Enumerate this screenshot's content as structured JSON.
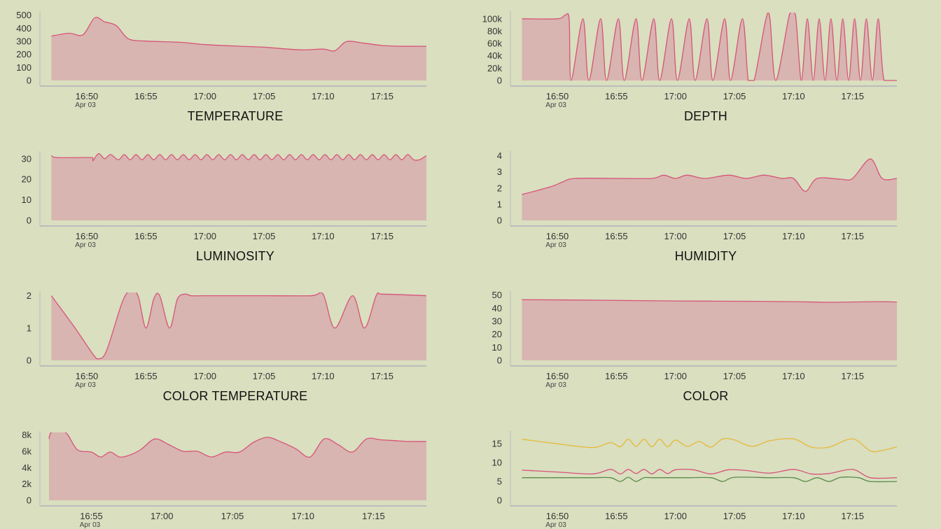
{
  "colors": {
    "background": "#d9dfbf",
    "line": "#d8537a",
    "fill": "#d8b5b0",
    "axis": "#bcbcbc",
    "series_yellow": "#e8b838",
    "series_pink": "#d8537a",
    "series_green": "#5a8a4a"
  },
  "chart_data": [
    {
      "id": "temperature",
      "type": "area",
      "title": "TEMPERATURE",
      "date_label": "Apr 03",
      "xlim": [
        "16:46:30",
        "17:18:45"
      ],
      "ylim": [
        0,
        520
      ],
      "yticks": [
        0,
        100,
        200,
        300,
        400,
        500
      ],
      "ytick_labels": [
        "0",
        "100",
        "200",
        "300",
        "400",
        "500"
      ],
      "xticks": [
        "16:50",
        "16:55",
        "17:00",
        "17:05",
        "17:10",
        "17:15"
      ],
      "series": [
        {
          "x": [
            "16:47:00",
            "16:48:30",
            "16:49:40",
            "16:50:40",
            "16:51:30",
            "16:52:30",
            "16:53:30",
            "16:55:00",
            "16:58:00",
            "17:00:00",
            "17:03:00",
            "17:05:00",
            "17:08:00",
            "17:10:00",
            "17:11:00",
            "17:12:00",
            "17:13:30",
            "17:15:00",
            "17:16:30",
            "17:18:45"
          ],
          "y": [
            340,
            362,
            350,
            480,
            450,
            420,
            320,
            302,
            292,
            275,
            262,
            255,
            235,
            240,
            228,
            298,
            285,
            268,
            262,
            262
          ]
        }
      ]
    },
    {
      "id": "depth",
      "type": "area",
      "title": "DEPTH",
      "date_label": "Apr 03",
      "xlim": [
        "16:46:30",
        "17:18:45"
      ],
      "ylim": [
        0,
        110000
      ],
      "yticks": [
        0,
        20000,
        40000,
        60000,
        80000,
        100000
      ],
      "ytick_labels": [
        "0",
        "20k",
        "40k",
        "60k",
        "80k",
        "100k"
      ],
      "xticks": [
        "16:50",
        "16:55",
        "17:00",
        "17:05",
        "17:10",
        "17:15"
      ],
      "series": [
        {
          "x": [
            "16:47:00",
            "16:50:00",
            "16:50:40",
            "16:51:00",
            "16:51:10",
            "16:52:10",
            "16:52:40",
            "16:53:40",
            "16:54:10",
            "16:55:10",
            "16:55:40",
            "16:56:40",
            "16:57:10",
            "16:58:10",
            "16:58:40",
            "16:59:40",
            "17:00:10",
            "17:01:10",
            "17:01:40",
            "17:02:40",
            "17:03:10",
            "17:04:10",
            "17:04:40",
            "17:05:40",
            "17:06:10",
            "17:06:40",
            "17:07:40",
            "17:08:00",
            "17:08:30",
            "17:09:40",
            "17:10:10",
            "17:10:40",
            "17:11:10",
            "17:11:40",
            "17:12:10",
            "17:12:40",
            "17:13:10",
            "17:13:40",
            "17:14:10",
            "17:14:40",
            "17:15:10",
            "17:15:40",
            "17:16:10",
            "17:16:40",
            "17:17:10",
            "17:17:40",
            "17:18:45"
          ],
          "y": [
            100000,
            100000,
            106000,
            100000,
            0,
            100000,
            0,
            100000,
            0,
            100000,
            0,
            100000,
            0,
            100000,
            0,
            100000,
            0,
            100000,
            0,
            100000,
            0,
            100000,
            0,
            100000,
            0,
            0,
            100000,
            100000,
            0,
            108000,
            106000,
            0,
            100000,
            0,
            100000,
            0,
            100000,
            0,
            100000,
            0,
            100000,
            0,
            100000,
            0,
            100000,
            0,
            0
          ]
        }
      ]
    },
    {
      "id": "luminosity",
      "type": "area",
      "title": "LUMINOSITY",
      "date_label": "Apr 03",
      "xlim": [
        "16:46:30",
        "17:18:45"
      ],
      "ylim": [
        0,
        33
      ],
      "yticks": [
        0,
        10,
        20,
        30
      ],
      "ytick_labels": [
        "0",
        "10",
        "20",
        "30"
      ],
      "xticks": [
        "16:50",
        "16:55",
        "17:00",
        "17:05",
        "17:10",
        "17:15"
      ],
      "series": [
        {
          "x": [
            "16:47:00",
            "16:47:30",
            "16:50:30",
            "16:50:31",
            "16:51:00",
            "16:51:30",
            "16:52:00",
            "16:52:40",
            "16:53:10",
            "16:53:40",
            "16:54:10",
            "16:54:40",
            "16:55:10",
            "16:55:40",
            "16:56:10",
            "16:56:40",
            "16:57:10",
            "16:57:40",
            "16:58:10",
            "16:58:40",
            "16:59:10",
            "16:59:40",
            "17:00:10",
            "17:00:40",
            "17:01:10",
            "17:01:40",
            "17:02:10",
            "17:02:40",
            "17:03:10",
            "17:03:40",
            "17:04:10",
            "17:04:40",
            "17:05:10",
            "17:05:40",
            "17:06:10",
            "17:06:40",
            "17:07:10",
            "17:07:40",
            "17:08:10",
            "17:08:40",
            "17:09:10",
            "17:09:40",
            "17:10:10",
            "17:10:40",
            "17:11:10",
            "17:11:40",
            "17:12:10",
            "17:12:40",
            "17:13:10",
            "17:13:40",
            "17:14:10",
            "17:14:40",
            "17:15:10",
            "17:15:40",
            "17:16:10",
            "17:16:40",
            "17:17:10",
            "17:17:40",
            "17:18:10",
            "17:18:45"
          ],
          "y": [
            31.5,
            30.5,
            30.5,
            29,
            32.5,
            30,
            32,
            29.5,
            32,
            29.5,
            32,
            29.5,
            32,
            29.5,
            32,
            29.5,
            32,
            29.5,
            32,
            29.5,
            32,
            29.5,
            32,
            29.5,
            32,
            29.5,
            32,
            29.5,
            32,
            29.5,
            32,
            29.5,
            32,
            29.5,
            32,
            29.5,
            32,
            29.5,
            32,
            29.5,
            32,
            29.5,
            32,
            29.5,
            32,
            29.5,
            32,
            29.5,
            32,
            29.5,
            32,
            29.5,
            32,
            29.5,
            32,
            29.5,
            32,
            29.5,
            29.5,
            31.5
          ]
        }
      ]
    },
    {
      "id": "humidity",
      "type": "area",
      "title": "HUMIDITY",
      "date_label": "Apr 03",
      "xlim": [
        "16:46:30",
        "17:18:45"
      ],
      "ylim": [
        0,
        4.2
      ],
      "yticks": [
        0,
        1,
        2,
        3,
        4
      ],
      "ytick_labels": [
        "0",
        "1",
        "2",
        "3",
        "4"
      ],
      "xticks": [
        "16:50",
        "16:55",
        "17:00",
        "17:05",
        "17:10",
        "17:15"
      ],
      "series": [
        {
          "x": [
            "16:47:00",
            "16:49:30",
            "16:50:30",
            "16:51:30",
            "16:55:00",
            "16:58:00",
            "16:59:00",
            "17:00:00",
            "17:01:00",
            "17:02:30",
            "17:04:30",
            "17:06:00",
            "17:07:30",
            "17:09:00",
            "17:10:00",
            "17:11:00",
            "17:12:00",
            "17:14:00",
            "17:15:00",
            "17:16:30",
            "17:17:30",
            "17:18:45"
          ],
          "y": [
            1.6,
            2.1,
            2.4,
            2.6,
            2.6,
            2.6,
            2.8,
            2.6,
            2.8,
            2.6,
            2.8,
            2.6,
            2.8,
            2.6,
            2.6,
            1.8,
            2.6,
            2.55,
            2.6,
            3.8,
            2.6,
            2.6
          ]
        }
      ]
    },
    {
      "id": "color-temperature",
      "type": "area",
      "title": "COLOR TEMPERATURE",
      "date_label": "Apr 03",
      "xlim": [
        "16:46:30",
        "17:18:45"
      ],
      "ylim": [
        0,
        2.1
      ],
      "yticks": [
        0,
        1,
        2
      ],
      "ytick_labels": [
        "0",
        "1",
        "2"
      ],
      "xticks": [
        "16:50",
        "16:55",
        "17:00",
        "17:05",
        "17:10",
        "17:15"
      ],
      "series": [
        {
          "x": [
            "16:47:00",
            "16:49:00",
            "16:50:30",
            "16:51:00",
            "16:51:40",
            "16:53:00",
            "16:53:40",
            "16:54:20",
            "16:55:00",
            "16:55:40",
            "16:56:10",
            "16:57:00",
            "16:57:40",
            "16:58:20",
            "16:58:50",
            "17:00:00",
            "17:05:00",
            "17:09:00",
            "17:10:00",
            "17:11:00",
            "17:12:30",
            "17:13:30",
            "17:14:30",
            "17:15:00",
            "17:18:45"
          ],
          "y": [
            2,
            1.0,
            0.2,
            0.05,
            0.3,
            1.8,
            2.15,
            2.0,
            1.0,
            1.9,
            2.0,
            1.0,
            1.9,
            2.05,
            2.0,
            2.0,
            2.0,
            2.0,
            2.05,
            1.0,
            2.0,
            1.0,
            2.0,
            2.05,
            2.0
          ]
        }
      ]
    },
    {
      "id": "color",
      "type": "area",
      "title": "COLOR",
      "date_label": "Apr 03",
      "xlim": [
        "16:46:30",
        "17:18:45"
      ],
      "ylim": [
        0,
        52
      ],
      "yticks": [
        0,
        10,
        20,
        30,
        40,
        50
      ],
      "ytick_labels": [
        "0",
        "10",
        "20",
        "30",
        "40",
        "50"
      ],
      "xticks": [
        "16:50",
        "16:55",
        "17:00",
        "17:05",
        "17:10",
        "17:15"
      ],
      "series": [
        {
          "x": [
            "16:47:00",
            "16:52:00",
            "16:57:00",
            "17:00:00",
            "17:05:00",
            "17:10:00",
            "17:13:00",
            "17:17:00",
            "17:18:45"
          ],
          "y": [
            46.5,
            46.2,
            45.8,
            45.5,
            45.3,
            45,
            44.5,
            45,
            44.7
          ]
        }
      ]
    },
    {
      "id": "panel-7",
      "type": "area",
      "title": "",
      "date_label": "Apr 03",
      "xlim": [
        "16:51:45",
        "17:18:45"
      ],
      "ylim": [
        0,
        8300
      ],
      "yticks": [
        0,
        2000,
        4000,
        6000,
        8000
      ],
      "ytick_labels": [
        "0",
        "2k",
        "4k",
        "6k",
        "8k"
      ],
      "xticks": [
        "16:55",
        "17:00",
        "17:05",
        "17:10",
        "17:15"
      ],
      "series": [
        {
          "x": [
            "16:52:00",
            "16:52:10",
            "16:53:10",
            "16:54:00",
            "16:55:00",
            "16:55:40",
            "16:56:20",
            "16:57:00",
            "16:57:40",
            "16:58:30",
            "16:59:30",
            "17:00:30",
            "17:01:30",
            "17:02:30",
            "17:03:30",
            "17:04:30",
            "17:05:30",
            "17:06:30",
            "17:07:30",
            "17:08:30",
            "17:09:30",
            "17:10:30",
            "17:11:30",
            "17:12:30",
            "17:13:30",
            "17:14:30",
            "17:15:30",
            "17:16:30",
            "17:17:30",
            "17:18:45"
          ],
          "y": [
            7500,
            8300,
            8300,
            6200,
            5900,
            5300,
            5900,
            5300,
            5500,
            6200,
            7500,
            6800,
            6000,
            6000,
            5300,
            5900,
            5900,
            7100,
            7700,
            7100,
            6300,
            5300,
            7500,
            6800,
            5900,
            7500,
            7400,
            7300,
            7200,
            7200
          ]
        }
      ]
    },
    {
      "id": "panel-8",
      "type": "line",
      "title": "",
      "date_label": "Apr 03",
      "xlim": [
        "16:46:30",
        "17:18:45"
      ],
      "ylim": [
        0,
        18
      ],
      "yticks": [
        0,
        5,
        10,
        15
      ],
      "ytick_labels": [
        "0",
        "5",
        "10",
        "15"
      ],
      "xticks": [
        "16:50",
        "16:55",
        "17:00",
        "17:05",
        "17:10",
        "17:15"
      ],
      "series": [
        {
          "color": "#e8b838",
          "x": [
            "16:47:00",
            "16:50:00",
            "16:53:00",
            "16:54:30",
            "16:55:20",
            "16:56:00",
            "16:56:40",
            "16:57:20",
            "16:58:00",
            "16:58:40",
            "16:59:20",
            "17:00:00",
            "17:01:00",
            "17:02:00",
            "17:03:00",
            "17:04:00",
            "17:05:00",
            "17:06:30",
            "17:08:00",
            "17:10:00",
            "17:11:30",
            "17:13:00",
            "17:15:00",
            "17:16:30",
            "17:17:30",
            "17:18:45"
          ],
          "y": [
            16.2,
            15.0,
            14.0,
            15.3,
            14.2,
            16.2,
            14.3,
            16.2,
            14.2,
            16.2,
            14.2,
            16.0,
            14.3,
            15.6,
            14.1,
            16.3,
            16.0,
            14.3,
            15.8,
            16.3,
            14.1,
            14.1,
            16.3,
            13.1,
            13.2,
            14.2
          ]
        },
        {
          "color": "#d8537a",
          "x": [
            "16:47:00",
            "16:50:00",
            "16:53:00",
            "16:54:30",
            "16:55:20",
            "16:56:00",
            "16:56:40",
            "16:57:20",
            "16:58:00",
            "16:58:40",
            "16:59:20",
            "17:00:00",
            "17:01:30",
            "17:03:00",
            "17:04:30",
            "17:06:00",
            "17:08:00",
            "17:10:00",
            "17:11:30",
            "17:13:00",
            "17:15:00",
            "17:16:30",
            "17:18:45"
          ],
          "y": [
            8.0,
            7.5,
            7.0,
            8.2,
            7.0,
            8.2,
            7.1,
            8.2,
            7.0,
            8.2,
            7.1,
            8.1,
            8.1,
            7.0,
            8.1,
            7.9,
            7.2,
            8.2,
            7.0,
            7.1,
            8.2,
            6.0,
            6.0
          ]
        },
        {
          "color": "#5a8a4a",
          "x": [
            "16:47:00",
            "16:50:00",
            "16:53:00",
            "16:54:30",
            "16:55:20",
            "16:56:00",
            "16:56:40",
            "16:57:20",
            "16:58:00",
            "16:59:00",
            "17:01:00",
            "17:03:00",
            "17:04:00",
            "17:05:00",
            "17:08:00",
            "17:10:00",
            "17:11:00",
            "17:12:00",
            "17:13:00",
            "17:14:00",
            "17:15:30",
            "17:16:30",
            "17:18:45"
          ],
          "y": [
            6.0,
            6.0,
            6.0,
            6.0,
            5.0,
            6.1,
            5.0,
            6.0,
            6.0,
            6.0,
            6.0,
            6.0,
            5.0,
            6.1,
            6.0,
            6.0,
            5.0,
            6.0,
            5.0,
            6.1,
            6.0,
            5.0,
            5.0
          ]
        }
      ]
    }
  ]
}
